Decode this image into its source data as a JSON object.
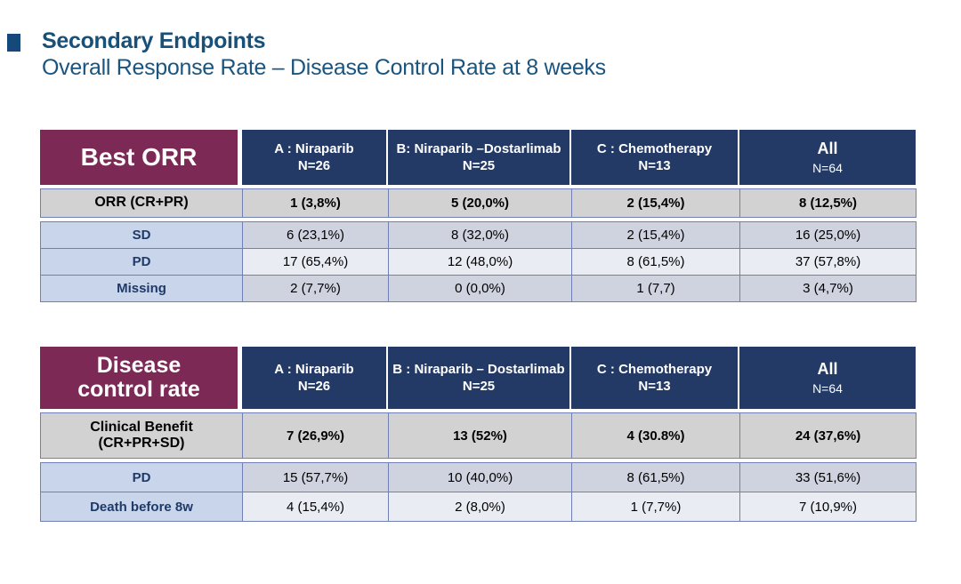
{
  "slide": {
    "title": "Secondary Endpoints",
    "subtitle": "Overall Response Rate – Disease Control Rate at 8 weeks"
  },
  "colors": {
    "title_blue": "#175079",
    "header_navy": "#233a66",
    "header_maroon": "#7c2a55",
    "row_gray": "#d2d2d2",
    "label_cell_blue": "#c8d5eb",
    "row_dark": "#cfd3e0",
    "row_light": "#eaecf4",
    "cell_border": "#7080b5"
  },
  "table1": {
    "title": "Best ORR",
    "columns": [
      {
        "line1": "A : Niraparib",
        "line2": "N=26"
      },
      {
        "line1": "B: Niraparib –Dostarlimab",
        "line2": "N=25"
      },
      {
        "line1": "C : Chemotherapy",
        "line2": "N=13"
      },
      {
        "line1": "All",
        "line2": "N=64"
      }
    ],
    "rows": [
      {
        "label": "ORR (CR+PR)",
        "values": [
          "1 (3,8%)",
          "5 (20,0%)",
          "2 (15,4%)",
          "8 (12,5%)"
        ]
      },
      {
        "label": "SD",
        "values": [
          "6 (23,1%)",
          "8 (32,0%)",
          "2 (15,4%)",
          "16 (25,0%)"
        ]
      },
      {
        "label": "PD",
        "values": [
          "17 (65,4%)",
          "12 (48,0%)",
          "8 (61,5%)",
          "37 (57,8%)"
        ]
      },
      {
        "label": "Missing",
        "values": [
          "2 (7,7%)",
          "0 (0,0%)",
          "1 (7,7)",
          "3 (4,7%)"
        ]
      }
    ]
  },
  "table2": {
    "title_line1": "Disease",
    "title_line2": "control rate",
    "columns": [
      {
        "line1": "A : Niraparib",
        "line2": "N=26"
      },
      {
        "line1": "B : Niraparib – Dostarlimab",
        "line2": "N=25"
      },
      {
        "line1": "C : Chemotherapy",
        "line2": "N=13"
      },
      {
        "line1": "All",
        "line2": "N=64"
      }
    ],
    "rows": [
      {
        "label_line1": "Clinical Benefit",
        "label_line2": "(CR+PR+SD)",
        "values": [
          "7 (26,9%)",
          "13 (52%)",
          "4 (30.8%)",
          "24 (37,6%)"
        ]
      },
      {
        "label": "PD",
        "values": [
          "15 (57,7%)",
          "10 (40,0%)",
          "8 (61,5%)",
          "33 (51,6%)"
        ]
      },
      {
        "label": "Death before 8w",
        "values": [
          "4 (15,4%)",
          "2 (8,0%)",
          "1 (7,7%)",
          "7 (10,9%)"
        ]
      }
    ]
  },
  "chart_data": [
    {
      "type": "table",
      "title": "Best ORR",
      "columns": [
        "A : Niraparib N=26",
        "B: Niraparib –Dostarlimab N=25",
        "C : Chemotherapy N=13",
        "All N=64"
      ],
      "rows": [
        [
          "ORR (CR+PR)",
          "1 (3,8%)",
          "5 (20,0%)",
          "2 (15,4%)",
          "8 (12,5%)"
        ],
        [
          "SD",
          "6 (23,1%)",
          "8 (32,0%)",
          "2 (15,4%)",
          "16 (25,0%)"
        ],
        [
          "PD",
          "17 (65,4%)",
          "12 (48,0%)",
          "8 (61,5%)",
          "37 (57,8%)"
        ],
        [
          "Missing",
          "2 (7,7%)",
          "0 (0,0%)",
          "1 (7,7)",
          "3 (4,7%)"
        ]
      ]
    },
    {
      "type": "table",
      "title": "Disease control rate",
      "columns": [
        "A : Niraparib N=26",
        "B : Niraparib – Dostarlimab N=25",
        "C : Chemotherapy N=13",
        "All N=64"
      ],
      "rows": [
        [
          "Clinical Benefit (CR+PR+SD)",
          "7 (26,9%)",
          "13 (52%)",
          "4 (30.8%)",
          "24 (37,6%)"
        ],
        [
          "PD",
          "15 (57,7%)",
          "10 (40,0%)",
          "8 (61,5%)",
          "33 (51,6%)"
        ],
        [
          "Death before 8w",
          "4 (15,4%)",
          "2 (8,0%)",
          "1 (7,7%)",
          "7 (10,9%)"
        ]
      ]
    }
  ]
}
